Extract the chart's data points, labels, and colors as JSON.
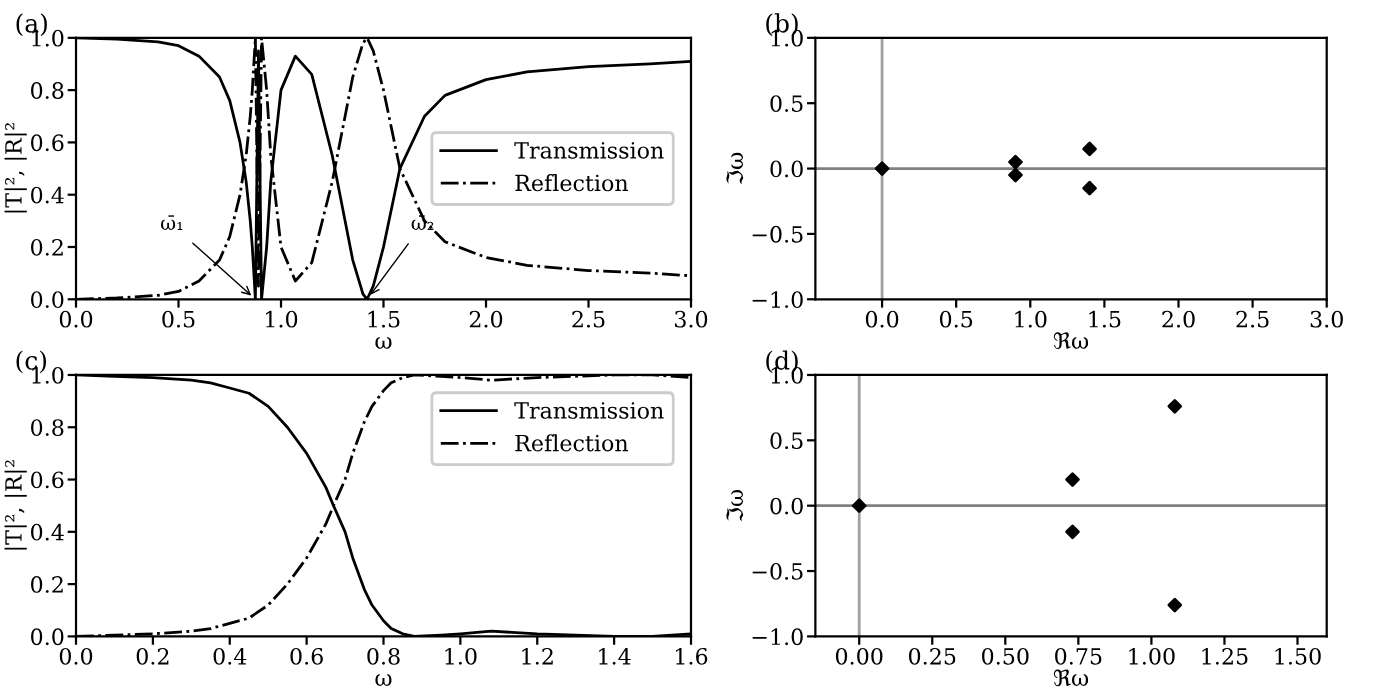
{
  "chart_data": [
    {
      "type": "line",
      "title": "(a)",
      "xlabel": "ω",
      "ylabel": "|T|², |R|²",
      "legend": "center right",
      "grid": false,
      "x": [
        0,
        0.2,
        0.4,
        0.5,
        0.6,
        0.7,
        0.75,
        0.8,
        0.83,
        0.85,
        0.86,
        0.875,
        0.89,
        0.905,
        0.93,
        0.95,
        1.0,
        1.07,
        1.15,
        1.25,
        1.3,
        1.35,
        1.4,
        1.42,
        1.45,
        1.5,
        1.58,
        1.7,
        1.8,
        2.0,
        2.2,
        2.5,
        2.8,
        3.0
      ],
      "series": [
        {
          "name": "Transmission",
          "color": "#000000",
          "line_style": "solid",
          "values": [
            1.0,
            0.995,
            0.985,
            0.97,
            0.93,
            0.85,
            0.76,
            0.6,
            0.45,
            0.3,
            0.2,
            0.0,
            0.95,
            0.0,
            0.2,
            0.45,
            0.8,
            0.93,
            0.86,
            0.55,
            0.35,
            0.15,
            0.02,
            0.0,
            0.05,
            0.2,
            0.5,
            0.7,
            0.78,
            0.84,
            0.87,
            0.89,
            0.9,
            0.91
          ]
        },
        {
          "name": "Reflection",
          "color": "#000000",
          "line_style": "dashdot",
          "values": [
            0.0,
            0.005,
            0.015,
            0.03,
            0.07,
            0.15,
            0.24,
            0.4,
            0.55,
            0.7,
            0.8,
            1.0,
            0.05,
            1.0,
            0.8,
            0.55,
            0.2,
            0.07,
            0.14,
            0.45,
            0.65,
            0.85,
            0.98,
            1.0,
            0.95,
            0.8,
            0.5,
            0.3,
            0.22,
            0.16,
            0.13,
            0.11,
            0.1,
            0.09
          ]
        }
      ],
      "xlim": [
        0,
        3
      ],
      "ylim": [
        0,
        1
      ],
      "xticks": [
        {
          "value": 0,
          "label": "0.0"
        },
        {
          "value": 0.5,
          "label": "0.5"
        },
        {
          "value": 1,
          "label": "1.0"
        },
        {
          "value": 1.5,
          "label": "1.5"
        },
        {
          "value": 2,
          "label": "2.0"
        },
        {
          "value": 2.5,
          "label": "2.5"
        },
        {
          "value": 3,
          "label": "3.0"
        }
      ],
      "yticks": [
        {
          "value": 0,
          "label": "0.0"
        },
        {
          "value": 0.2,
          "label": "0.2"
        },
        {
          "value": 0.4,
          "label": "0.4"
        },
        {
          "value": 0.6,
          "label": "0.6"
        },
        {
          "value": 0.8,
          "label": "0.8"
        },
        {
          "value": 1,
          "label": "1.0"
        }
      ],
      "annotations": [
        {
          "text": "ω̄₁",
          "x": 0.875,
          "y": 0
        },
        {
          "text": "ω̄₂",
          "x": 1.42,
          "y": 0
        }
      ]
    },
    {
      "type": "scatter",
      "title": "(b)",
      "xlabel": "ℜω",
      "ylabel": "ℑω",
      "marker": "diamond",
      "grid": false,
      "series": [
        {
          "color": "#000000",
          "x": [
            0,
            0.9,
            0.9,
            1.4,
            1.4
          ],
          "values": [
            0,
            0.05,
            -0.05,
            0.15,
            -0.15
          ]
        }
      ],
      "xlim": [
        -0.45,
        3
      ],
      "ylim": [
        -1,
        1
      ],
      "xticks": [
        {
          "value": 0,
          "label": "0.0"
        },
        {
          "value": 0.5,
          "label": "0.5"
        },
        {
          "value": 1,
          "label": "1.0"
        },
        {
          "value": 1.5,
          "label": "1.5"
        },
        {
          "value": 2,
          "label": "2.0"
        },
        {
          "value": 2.5,
          "label": "2.5"
        },
        {
          "value": 3,
          "label": "3.0"
        }
      ],
      "yticks": [
        {
          "value": -1,
          "label": "−1.0"
        },
        {
          "value": -0.5,
          "label": "−0.5"
        },
        {
          "value": 0,
          "label": "0.0"
        },
        {
          "value": 0.5,
          "label": "0.5"
        },
        {
          "value": 1,
          "label": "1.0"
        }
      ],
      "ref_lines": [
        {
          "axis": "x",
          "value": 0,
          "color": "#a0a0a0"
        },
        {
          "axis": "y",
          "value": 0,
          "color": "#808080"
        }
      ]
    },
    {
      "type": "line",
      "title": "(c)",
      "xlabel": "ω",
      "ylabel": "|T|², |R|²",
      "legend": "top right",
      "grid": false,
      "x": [
        0,
        0.1,
        0.2,
        0.3,
        0.35,
        0.4,
        0.45,
        0.5,
        0.55,
        0.6,
        0.65,
        0.67,
        0.7,
        0.72,
        0.75,
        0.77,
        0.8,
        0.82,
        0.85,
        0.88,
        0.95,
        1.0,
        1.08,
        1.2,
        1.3,
        1.4,
        1.5,
        1.6
      ],
      "series": [
        {
          "name": "Transmission",
          "color": "#000000",
          "line_style": "solid",
          "values": [
            1.0,
            0.995,
            0.99,
            0.98,
            0.97,
            0.95,
            0.93,
            0.88,
            0.8,
            0.7,
            0.57,
            0.5,
            0.4,
            0.3,
            0.18,
            0.12,
            0.06,
            0.03,
            0.01,
            0.0,
            0.005,
            0.01,
            0.02,
            0.01,
            0.005,
            0.0,
            0.0,
            0.01
          ]
        },
        {
          "name": "Reflection",
          "color": "#000000",
          "line_style": "dashdot",
          "values": [
            0.0,
            0.005,
            0.01,
            0.02,
            0.03,
            0.05,
            0.07,
            0.12,
            0.2,
            0.3,
            0.43,
            0.5,
            0.6,
            0.7,
            0.82,
            0.88,
            0.94,
            0.97,
            0.99,
            1.0,
            0.995,
            0.99,
            0.98,
            0.99,
            0.995,
            1.0,
            1.0,
            0.99
          ]
        }
      ],
      "xlim": [
        0,
        1.6
      ],
      "ylim": [
        0,
        1
      ],
      "xticks": [
        {
          "value": 0,
          "label": "0.0"
        },
        {
          "value": 0.2,
          "label": "0.2"
        },
        {
          "value": 0.4,
          "label": "0.4"
        },
        {
          "value": 0.6,
          "label": "0.6"
        },
        {
          "value": 0.8,
          "label": "0.8"
        },
        {
          "value": 1,
          "label": "1.0"
        },
        {
          "value": 1.2,
          "label": "1.2"
        },
        {
          "value": 1.4,
          "label": "1.4"
        },
        {
          "value": 1.6,
          "label": "1.6"
        }
      ],
      "yticks": [
        {
          "value": 0,
          "label": "0.0"
        },
        {
          "value": 0.2,
          "label": "0.2"
        },
        {
          "value": 0.4,
          "label": "0.4"
        },
        {
          "value": 0.6,
          "label": "0.6"
        },
        {
          "value": 0.8,
          "label": "0.8"
        },
        {
          "value": 1,
          "label": "1.0"
        }
      ]
    },
    {
      "type": "scatter",
      "title": "(d)",
      "xlabel": "ℜω",
      "ylabel": "ℑω",
      "marker": "diamond",
      "grid": false,
      "series": [
        {
          "color": "#000000",
          "x": [
            0,
            0.73,
            0.73,
            1.08,
            1.08
          ],
          "values": [
            0,
            0.2,
            -0.2,
            0.76,
            -0.76
          ]
        }
      ],
      "xlim": [
        -0.15,
        1.6
      ],
      "ylim": [
        -1,
        1
      ],
      "xticks": [
        {
          "value": 0,
          "label": "0.00"
        },
        {
          "value": 0.25,
          "label": "0.25"
        },
        {
          "value": 0.5,
          "label": "0.50"
        },
        {
          "value": 0.75,
          "label": "0.75"
        },
        {
          "value": 1,
          "label": "1.00"
        },
        {
          "value": 1.25,
          "label": "1.25"
        },
        {
          "value": 1.5,
          "label": "1.50"
        }
      ],
      "yticks": [
        {
          "value": -1,
          "label": "−1.0"
        },
        {
          "value": -0.5,
          "label": "−0.5"
        },
        {
          "value": 0,
          "label": "0.0"
        },
        {
          "value": 0.5,
          "label": "0.5"
        },
        {
          "value": 1,
          "label": "1.0"
        }
      ],
      "ref_lines": [
        {
          "axis": "x",
          "value": 0,
          "color": "#a0a0a0"
        },
        {
          "axis": "y",
          "value": 0,
          "color": "#808080"
        }
      ]
    }
  ]
}
